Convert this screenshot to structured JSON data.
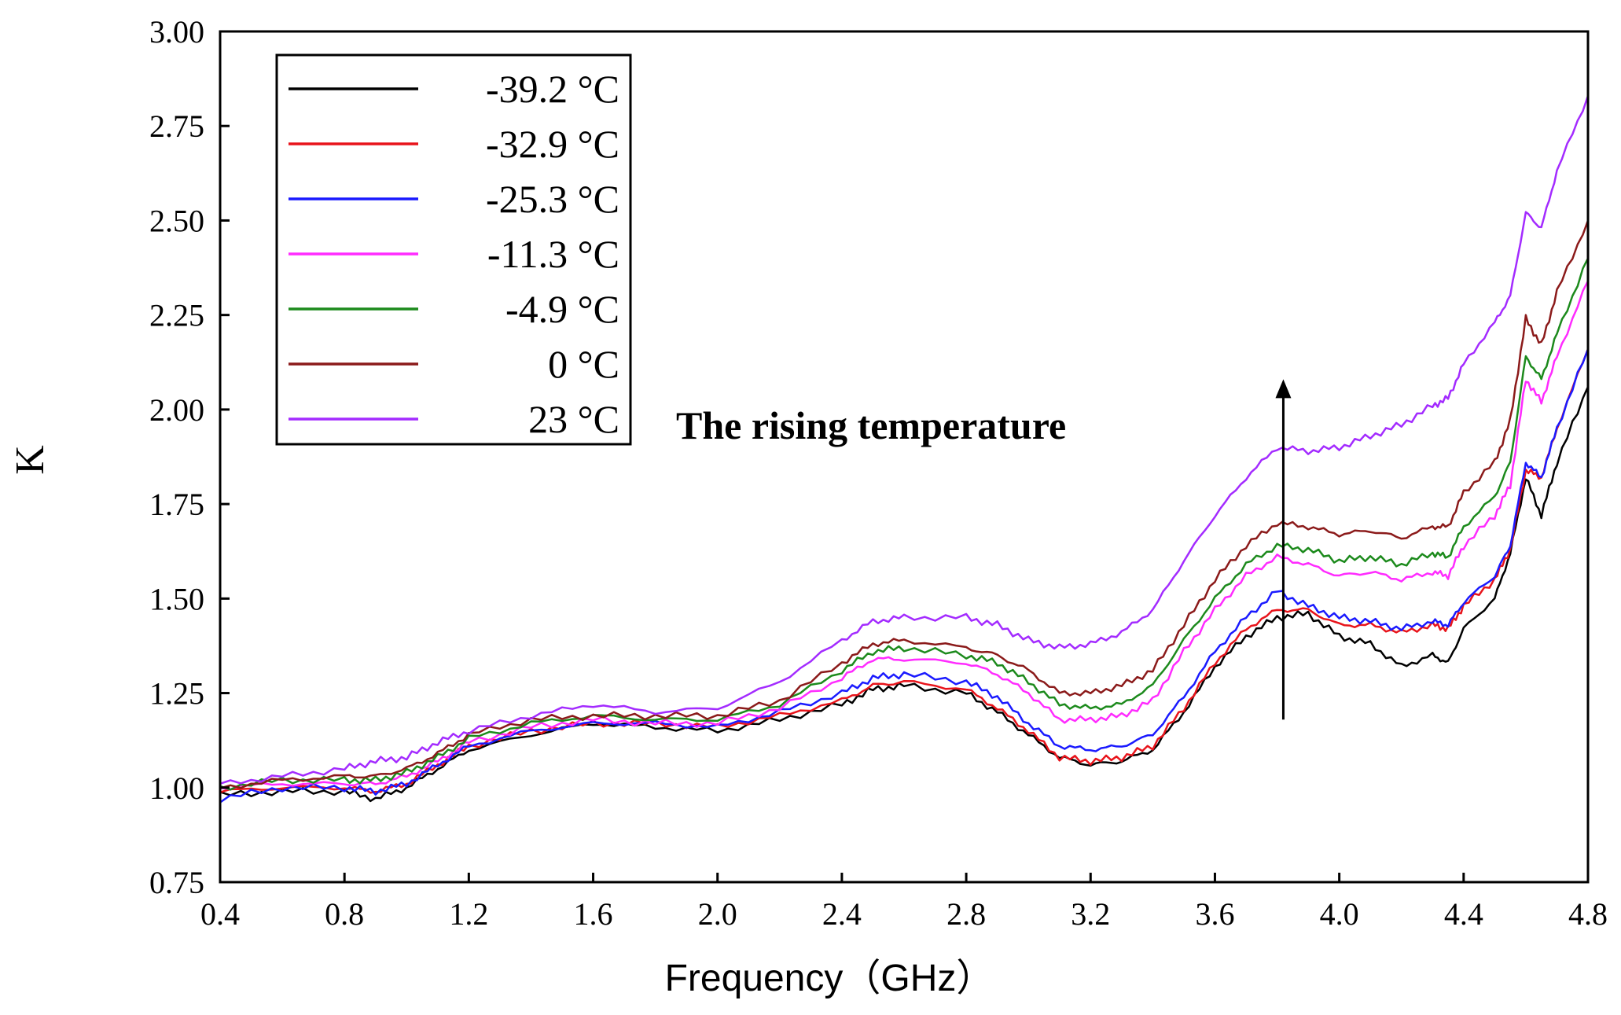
{
  "chart_data": {
    "type": "line",
    "title": "",
    "xlabel": "Frequency（GHz）",
    "ylabel": "K",
    "xlim": [
      0.4,
      4.8
    ],
    "ylim": [
      0.75,
      3.0
    ],
    "xticks": [
      0.4,
      0.8,
      1.2,
      1.6,
      2.0,
      2.4,
      2.8,
      3.2,
      3.6,
      4.0,
      4.4,
      4.8
    ],
    "yticks": [
      0.75,
      1.0,
      1.25,
      1.5,
      1.75,
      2.0,
      2.25,
      2.5,
      2.75,
      3.0
    ],
    "xtick_labels": [
      "0.4",
      "0.8",
      "1.2",
      "1.6",
      "2.0",
      "2.4",
      "2.8",
      "3.2",
      "3.6",
      "4.0",
      "4.4",
      "4.8"
    ],
    "ytick_labels": [
      "0.75",
      "1.00",
      "1.25",
      "1.50",
      "1.75",
      "2.00",
      "2.25",
      "2.50",
      "2.75",
      "3.00"
    ],
    "grid": false,
    "legend_position": "top-left",
    "annotation": {
      "text": "The rising temperature",
      "arrow_x": 3.82,
      "arrow_from_y": 1.18,
      "arrow_to_y": 2.08
    },
    "series": [
      {
        "name": "-39.2 °C",
        "color": "#000000",
        "x": [
          0.4,
          0.6,
          0.8,
          0.9,
          1.0,
          1.1,
          1.2,
          1.4,
          1.6,
          1.8,
          2.0,
          2.2,
          2.4,
          2.5,
          2.6,
          2.8,
          2.9,
          3.0,
          3.1,
          3.2,
          3.3,
          3.4,
          3.5,
          3.6,
          3.7,
          3.8,
          3.9,
          4.0,
          4.1,
          4.2,
          4.3,
          4.35,
          4.4,
          4.5,
          4.55,
          4.6,
          4.65,
          4.7,
          4.8
        ],
        "values": [
          0.98,
          0.99,
          0.99,
          0.97,
          1.0,
          1.05,
          1.1,
          1.14,
          1.17,
          1.16,
          1.15,
          1.18,
          1.22,
          1.26,
          1.27,
          1.25,
          1.2,
          1.14,
          1.08,
          1.06,
          1.07,
          1.1,
          1.2,
          1.32,
          1.4,
          1.45,
          1.46,
          1.4,
          1.38,
          1.32,
          1.35,
          1.33,
          1.42,
          1.5,
          1.62,
          1.82,
          1.72,
          1.86,
          2.06
        ]
      },
      {
        "name": "-32.9 °C",
        "color": "#e8141b",
        "x": [
          0.4,
          0.6,
          0.8,
          0.9,
          1.0,
          1.1,
          1.2,
          1.4,
          1.6,
          1.8,
          2.0,
          2.2,
          2.4,
          2.5,
          2.6,
          2.8,
          2.9,
          3.0,
          3.1,
          3.2,
          3.3,
          3.4,
          3.5,
          3.6,
          3.7,
          3.8,
          3.9,
          4.0,
          4.1,
          4.2,
          4.3,
          4.35,
          4.4,
          4.5,
          4.55,
          4.6,
          4.65,
          4.7,
          4.8
        ],
        "values": [
          0.99,
          1.0,
          1.0,
          0.99,
          1.01,
          1.06,
          1.11,
          1.15,
          1.17,
          1.17,
          1.16,
          1.19,
          1.23,
          1.27,
          1.28,
          1.26,
          1.21,
          1.15,
          1.08,
          1.07,
          1.08,
          1.11,
          1.21,
          1.33,
          1.42,
          1.47,
          1.47,
          1.43,
          1.43,
          1.41,
          1.43,
          1.42,
          1.48,
          1.55,
          1.63,
          1.84,
          1.82,
          1.95,
          2.16
        ]
      },
      {
        "name": "-25.3 °C",
        "color": "#1a1aff",
        "x": [
          0.4,
          0.6,
          0.8,
          0.9,
          1.0,
          1.1,
          1.2,
          1.4,
          1.6,
          1.8,
          2.0,
          2.2,
          2.4,
          2.5,
          2.6,
          2.8,
          2.9,
          3.0,
          3.1,
          3.2,
          3.3,
          3.4,
          3.5,
          3.6,
          3.7,
          3.8,
          3.9,
          4.0,
          4.1,
          4.2,
          4.3,
          4.35,
          4.4,
          4.5,
          4.55,
          4.6,
          4.65,
          4.7,
          4.8
        ],
        "values": [
          0.97,
          1.0,
          1.0,
          0.99,
          1.01,
          1.06,
          1.11,
          1.15,
          1.17,
          1.17,
          1.16,
          1.2,
          1.25,
          1.29,
          1.3,
          1.28,
          1.24,
          1.17,
          1.11,
          1.1,
          1.11,
          1.14,
          1.24,
          1.36,
          1.45,
          1.52,
          1.48,
          1.45,
          1.44,
          1.42,
          1.44,
          1.43,
          1.49,
          1.56,
          1.64,
          1.86,
          1.82,
          1.95,
          2.16
        ]
      },
      {
        "name": "-11.3 °C",
        "color": "#ff2bff",
        "x": [
          0.4,
          0.6,
          0.8,
          0.9,
          1.0,
          1.1,
          1.2,
          1.4,
          1.6,
          1.8,
          2.0,
          2.2,
          2.4,
          2.5,
          2.6,
          2.8,
          2.9,
          3.0,
          3.1,
          3.2,
          3.3,
          3.4,
          3.5,
          3.6,
          3.7,
          3.8,
          3.9,
          4.0,
          4.1,
          4.2,
          4.3,
          4.35,
          4.4,
          4.5,
          4.55,
          4.6,
          4.65,
          4.7,
          4.8
        ],
        "values": [
          1.0,
          1.01,
          1.01,
          1.01,
          1.03,
          1.07,
          1.12,
          1.16,
          1.18,
          1.17,
          1.17,
          1.21,
          1.29,
          1.34,
          1.34,
          1.33,
          1.3,
          1.25,
          1.18,
          1.18,
          1.19,
          1.23,
          1.36,
          1.47,
          1.56,
          1.61,
          1.59,
          1.56,
          1.57,
          1.55,
          1.57,
          1.56,
          1.64,
          1.72,
          1.8,
          2.08,
          2.02,
          2.14,
          2.34
        ]
      },
      {
        "name": "-4.9 °C",
        "color": "#1c8a1c",
        "x": [
          0.4,
          0.6,
          0.8,
          0.9,
          1.0,
          1.1,
          1.2,
          1.4,
          1.6,
          1.8,
          2.0,
          2.2,
          2.4,
          2.5,
          2.6,
          2.8,
          2.9,
          3.0,
          3.1,
          3.2,
          3.3,
          3.4,
          3.5,
          3.6,
          3.7,
          3.8,
          3.9,
          4.0,
          4.1,
          4.2,
          4.3,
          4.35,
          4.4,
          4.5,
          4.55,
          4.6,
          4.65,
          4.7,
          4.8
        ],
        "values": [
          1.0,
          1.02,
          1.02,
          1.02,
          1.04,
          1.08,
          1.13,
          1.17,
          1.19,
          1.18,
          1.18,
          1.22,
          1.31,
          1.36,
          1.37,
          1.35,
          1.33,
          1.28,
          1.22,
          1.21,
          1.22,
          1.27,
          1.39,
          1.5,
          1.59,
          1.64,
          1.63,
          1.6,
          1.61,
          1.59,
          1.62,
          1.61,
          1.69,
          1.77,
          1.86,
          2.14,
          2.08,
          2.2,
          2.4
        ]
      },
      {
        "name": "0 °C",
        "color": "#8b1a1a",
        "x": [
          0.4,
          0.6,
          0.8,
          0.9,
          1.0,
          1.1,
          1.2,
          1.4,
          1.6,
          1.8,
          2.0,
          2.2,
          2.4,
          2.5,
          2.6,
          2.8,
          2.9,
          3.0,
          3.1,
          3.2,
          3.3,
          3.4,
          3.5,
          3.6,
          3.7,
          3.8,
          3.9,
          4.0,
          4.1,
          4.2,
          4.3,
          4.35,
          4.4,
          4.5,
          4.55,
          4.6,
          4.65,
          4.7,
          4.8
        ],
        "values": [
          1.0,
          1.02,
          1.03,
          1.03,
          1.05,
          1.09,
          1.14,
          1.18,
          1.19,
          1.19,
          1.19,
          1.23,
          1.33,
          1.38,
          1.39,
          1.37,
          1.35,
          1.31,
          1.25,
          1.25,
          1.27,
          1.31,
          1.43,
          1.55,
          1.64,
          1.7,
          1.69,
          1.67,
          1.68,
          1.66,
          1.69,
          1.69,
          1.78,
          1.86,
          1.97,
          2.24,
          2.17,
          2.31,
          2.5
        ]
      },
      {
        "name": "23 °C",
        "color": "#a32bff",
        "x": [
          0.4,
          0.6,
          0.8,
          0.9,
          1.0,
          1.1,
          1.2,
          1.4,
          1.6,
          1.8,
          2.0,
          2.2,
          2.4,
          2.5,
          2.6,
          2.8,
          2.9,
          3.0,
          3.1,
          3.2,
          3.3,
          3.4,
          3.5,
          3.6,
          3.7,
          3.8,
          3.9,
          4.0,
          4.1,
          4.2,
          4.3,
          4.35,
          4.4,
          4.5,
          4.55,
          4.6,
          4.65,
          4.7,
          4.8
        ],
        "values": [
          1.01,
          1.03,
          1.05,
          1.07,
          1.08,
          1.12,
          1.15,
          1.19,
          1.22,
          1.2,
          1.21,
          1.28,
          1.39,
          1.44,
          1.45,
          1.45,
          1.43,
          1.39,
          1.37,
          1.38,
          1.41,
          1.47,
          1.6,
          1.72,
          1.82,
          1.9,
          1.89,
          1.9,
          1.93,
          1.96,
          2.01,
          2.03,
          2.12,
          2.23,
          2.3,
          2.52,
          2.48,
          2.63,
          2.83
        ]
      }
    ]
  }
}
